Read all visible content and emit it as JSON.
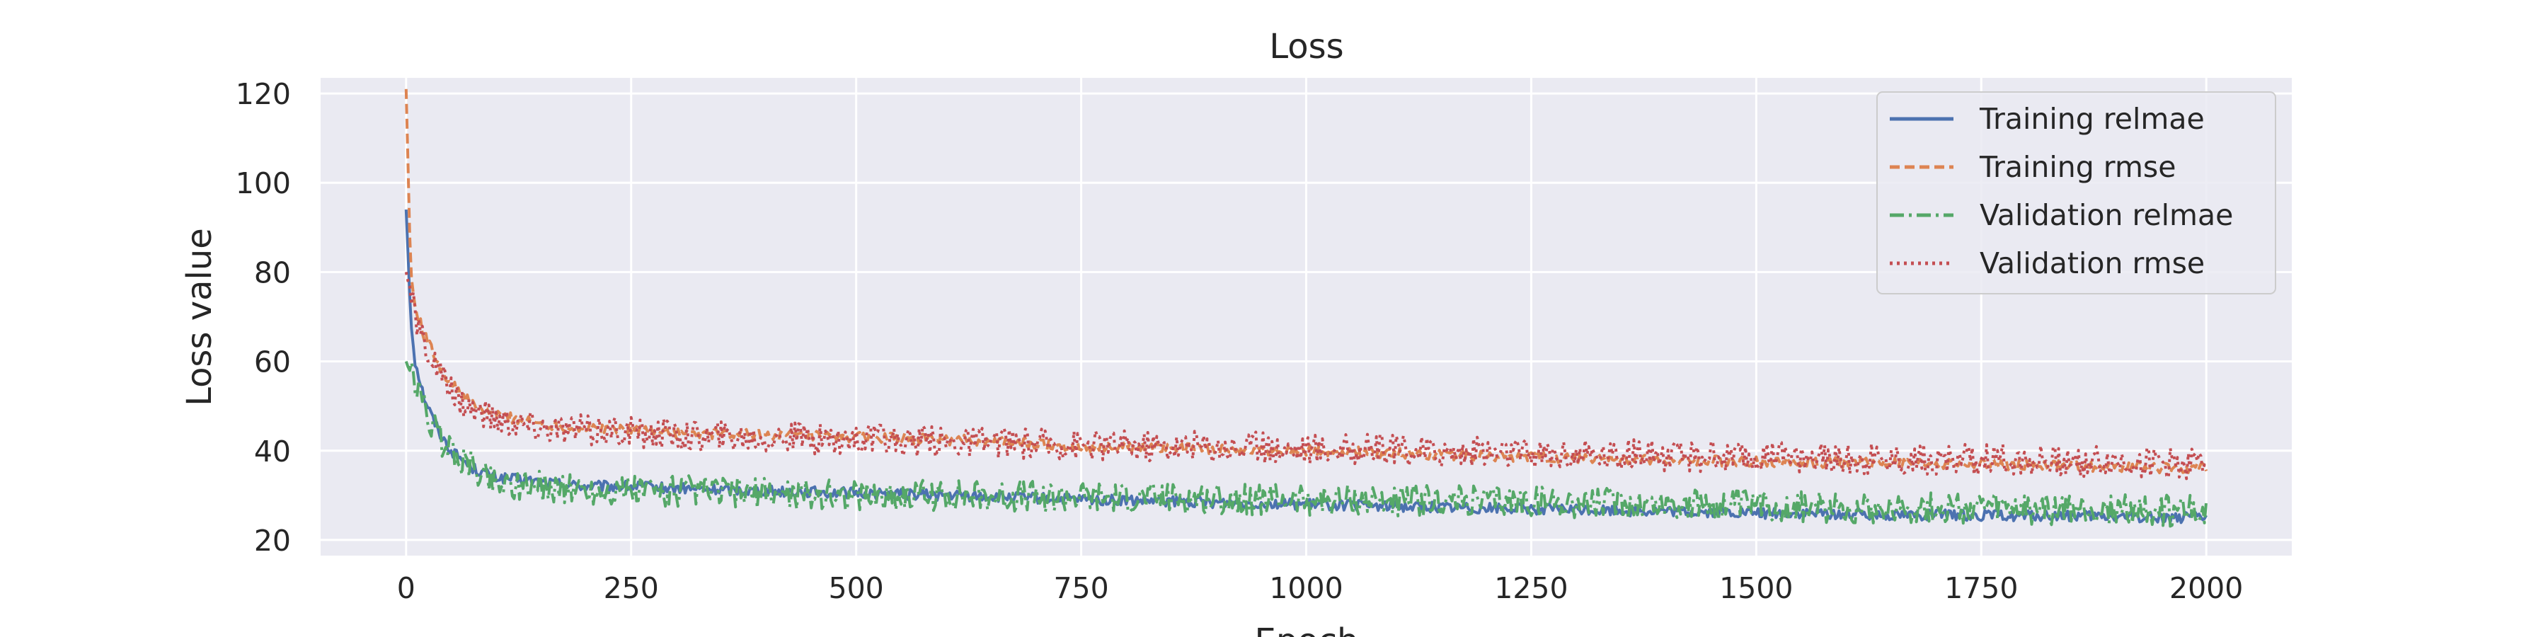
{
  "chart_data": {
    "type": "line",
    "title": "Loss",
    "xlabel": "Epoch",
    "ylabel": "Loss value",
    "xlim": [
      -95,
      2095
    ],
    "ylim": [
      16.5,
      123.5
    ],
    "xticks": [
      0,
      250,
      500,
      750,
      1000,
      1250,
      1500,
      1750,
      2000
    ],
    "yticks": [
      20,
      40,
      60,
      80,
      100,
      120
    ],
    "grid": true,
    "legend_position": "top-right",
    "x": [
      0,
      5,
      10,
      20,
      30,
      40,
      50,
      75,
      100,
      150,
      200,
      250,
      300,
      400,
      500,
      600,
      750,
      1000,
      1250,
      1500,
      1750,
      2000
    ],
    "series": [
      {
        "name": "Training relmae",
        "color": "#4c72b0",
        "dash": "solid",
        "values": [
          94,
          70,
          60,
          52,
          47,
          43,
          40,
          36,
          34,
          33,
          32,
          32,
          31.5,
          31,
          30.5,
          30,
          29,
          28,
          27,
          26,
          25.5,
          25
        ]
      },
      {
        "name": "Training rmse",
        "color": "#dd8452",
        "dash": "dashed",
        "values": [
          121,
          80,
          72,
          66,
          62,
          58,
          55,
          50,
          48,
          46,
          45,
          45,
          44,
          43.5,
          43,
          42.5,
          41,
          40,
          38.5,
          37.5,
          37,
          36
        ]
      },
      {
        "name": "Validation relmae",
        "color": "#55a868",
        "dash": "dashdot",
        "values": [
          60,
          57,
          55,
          50,
          45,
          42,
          40,
          36,
          33,
          32,
          31,
          31,
          31,
          30.5,
          30,
          30,
          29.5,
          29,
          28.5,
          27.5,
          27,
          26.5
        ]
      },
      {
        "name": "Validation rmse",
        "color": "#c44e52",
        "dash": "dotted",
        "values": [
          80,
          75,
          70,
          64,
          60,
          56,
          53,
          49,
          47,
          45,
          44.5,
          44,
          43.5,
          43,
          42.5,
          42,
          41.5,
          40.5,
          39.5,
          38.5,
          38,
          37
        ]
      }
    ]
  }
}
